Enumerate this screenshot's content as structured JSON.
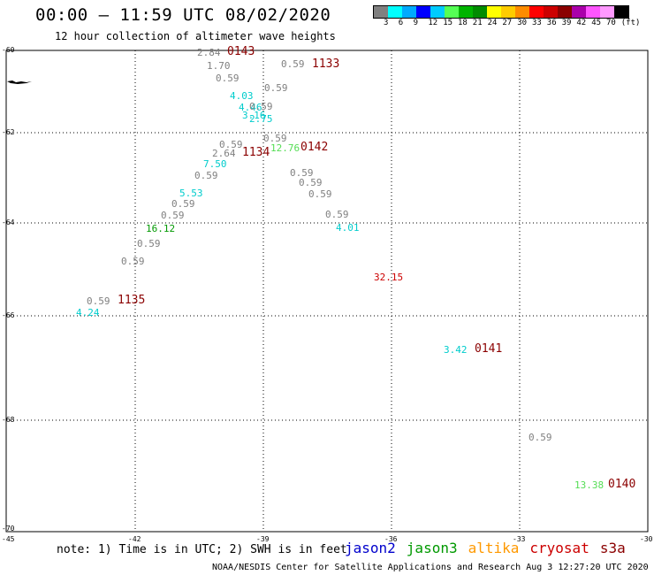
{
  "header": {
    "title": "00:00 – 11:59 UTC 08/02/2020",
    "subtitle": "12 hour collection of altimeter wave heights"
  },
  "legend": {
    "colors": [
      "#808080",
      "#00ffff",
      "#00aaff",
      "#0000ff",
      "#00ccff",
      "#55ff55",
      "#00b400",
      "#008c00",
      "#ffff00",
      "#ffcc00",
      "#ff8c00",
      "#ff0000",
      "#cc0000",
      "#8b0000",
      "#aa00aa",
      "#ff55ff",
      "#ff99ff",
      "#000000"
    ],
    "labels": [
      "3",
      "6",
      "9",
      "12",
      "15",
      "18",
      "21",
      "24",
      "27",
      "30",
      "33",
      "36",
      "39",
      "42",
      "45",
      "70",
      "(ft)"
    ]
  },
  "axes": {
    "y_ticks": [
      "-60",
      "-62",
      "-64",
      "-66",
      "-68",
      "-70"
    ],
    "x_ticks": [
      "-45",
      "-42",
      "-39",
      "-36",
      "-33",
      "-30"
    ]
  },
  "markers": [
    {
      "text": "2.84",
      "color": "#808080"
    },
    {
      "text": "0143",
      "color": "#8b0000"
    },
    {
      "text": "1.70",
      "color": "#808080"
    },
    {
      "text": "0.59",
      "color": "#808080"
    },
    {
      "text": "1133",
      "color": "#8b0000"
    },
    {
      "text": "0.59",
      "color": "#808080"
    },
    {
      "text": "0.59",
      "color": "#808080"
    },
    {
      "text": "4.03",
      "color": "#00cccc"
    },
    {
      "text": "4.46",
      "color": "#00cccc"
    },
    {
      "text": "0.59",
      "color": "#808080"
    },
    {
      "text": "3.16",
      "color": "#00cccc"
    },
    {
      "text": "2.75",
      "color": "#00cccc"
    },
    {
      "text": "0.59",
      "color": "#808080"
    },
    {
      "text": "0.59",
      "color": "#808080"
    },
    {
      "text": "2.64",
      "color": "#808080"
    },
    {
      "text": "1134",
      "color": "#8b0000"
    },
    {
      "text": "12.76",
      "color": "#55dd55"
    },
    {
      "text": "0142",
      "color": "#8b0000"
    },
    {
      "text": "7.50",
      "color": "#00cccc"
    },
    {
      "text": "0.59",
      "color": "#808080"
    },
    {
      "text": "0.59",
      "color": "#808080"
    },
    {
      "text": "0.59",
      "color": "#808080"
    },
    {
      "text": "0.59",
      "color": "#808080"
    },
    {
      "text": "5.53",
      "color": "#00cccc"
    },
    {
      "text": "0.59",
      "color": "#808080"
    },
    {
      "text": "0.59",
      "color": "#808080"
    },
    {
      "text": "0.59",
      "color": "#808080"
    },
    {
      "text": "16.12",
      "color": "#009900"
    },
    {
      "text": "4.01",
      "color": "#00cccc"
    },
    {
      "text": "0.59",
      "color": "#808080"
    },
    {
      "text": "0.59",
      "color": "#808080"
    },
    {
      "text": "32.15",
      "color": "#cc0000"
    },
    {
      "text": "0.59",
      "color": "#808080"
    },
    {
      "text": "1135",
      "color": "#8b0000"
    },
    {
      "text": "4.24",
      "color": "#00cccc"
    },
    {
      "text": "3.42",
      "color": "#00cccc"
    },
    {
      "text": "0141",
      "color": "#8b0000"
    },
    {
      "text": "0.59",
      "color": "#808080"
    },
    {
      "text": "13.38",
      "color": "#55dd55"
    },
    {
      "text": "0140",
      "color": "#8b0000"
    }
  ],
  "note": "note: 1) Time is in UTC; 2) SWH is in feet",
  "satellites": [
    {
      "name": "jason2",
      "color": "#0000cc"
    },
    {
      "name": "jason3",
      "color": "#009900"
    },
    {
      "name": "altika",
      "color": "#ff9900"
    },
    {
      "name": "cryosat",
      "color": "#cc0000"
    },
    {
      "name": "s3a",
      "color": "#8b0000"
    }
  ],
  "footer": "NOAA/NESDIS Center for Satellite Applications and Research    Aug  3 12:27:20 UTC 2020"
}
